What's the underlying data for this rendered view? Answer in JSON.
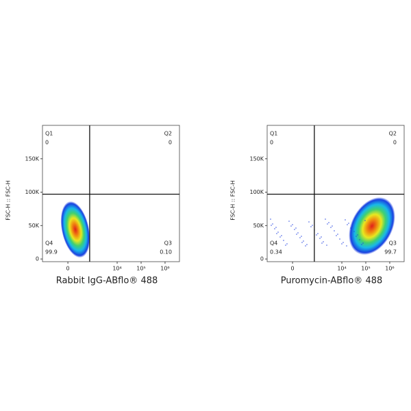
{
  "chart_data": [
    {
      "type": "flow-density",
      "ylabel": "FSC-H :: FSC-H",
      "xlabel": "Rabbit IgG-ABflo® 488",
      "xlim": [
        -1000,
        4000000
      ],
      "ylim": [
        -4000,
        200000
      ],
      "xticks": [
        0,
        {
          "value": 10000,
          "label": "10⁴"
        },
        {
          "value": 100000,
          "label": "10⁵"
        },
        {
          "value": 1000000,
          "label": "10⁶"
        }
      ],
      "yticks": [
        0,
        {
          "value": 50000,
          "label": "50K"
        },
        {
          "value": 100000,
          "label": "100K"
        },
        {
          "value": 150000,
          "label": "150K"
        }
      ],
      "gate": {
        "x": 700,
        "y": 97000
      },
      "quadrants": {
        "names": [
          "Q1",
          "Q2",
          "Q3",
          "Q4"
        ],
        "values": [
          0,
          0,
          0.1,
          99.9
        ],
        "value_labels": [
          "0",
          "0",
          "0.10",
          "99.9"
        ]
      }
    },
    {
      "type": "flow-density",
      "ylabel": "FSC-H :: FSC-H",
      "xlabel": "Puromycin-ABflo® 488",
      "xlim": [
        -1000,
        4000000
      ],
      "ylim": [
        -4000,
        200000
      ],
      "xticks": [
        0,
        {
          "value": 10000,
          "label": "10⁴"
        },
        {
          "value": 100000,
          "label": "10⁵"
        },
        {
          "value": 1000000,
          "label": "10⁶"
        }
      ],
      "yticks": [
        0,
        {
          "value": 50000,
          "label": "50K"
        },
        {
          "value": 100000,
          "label": "100K"
        },
        {
          "value": 150000,
          "label": "150K"
        }
      ],
      "gate": {
        "x": 700,
        "y": 97000
      },
      "quadrants": {
        "names": [
          "Q1",
          "Q2",
          "Q3",
          "Q4"
        ],
        "values": [
          0,
          0,
          99.7,
          0.34
        ],
        "value_labels": [
          "0",
          "0",
          "99.7",
          "0.34"
        ]
      }
    }
  ]
}
